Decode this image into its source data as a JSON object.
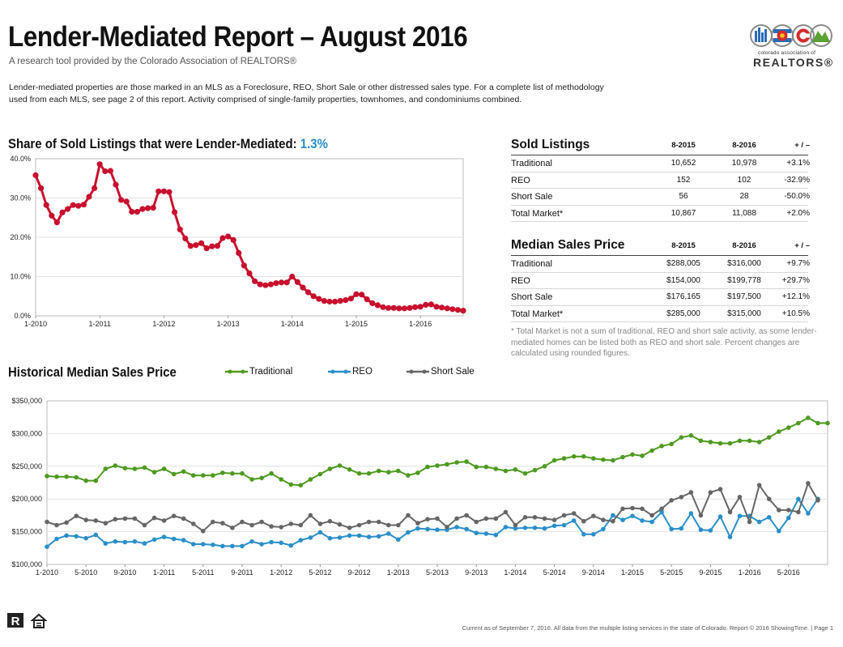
{
  "header": {
    "title": "Lender-Mediated Report – August 2016",
    "subtitle": "A research tool provided by the Colorado Association of REALTORS®",
    "intro": "Lender-mediated properties are those marked in an MLS as a Foreclosure, REO, Short Sale or other distressed sales type. For a complete list of methodology used from each MLS, see page 2 of this report. Activity comprised of single-family properties, townhomes, and condominiums combined."
  },
  "logo": {
    "tagline": "colorado association of",
    "name": "REALTORS®",
    "colors": {
      "blue": "#2a6db5",
      "red": "#d52b2b",
      "yellow": "#f2c21a",
      "green": "#5aa132",
      "gray": "#8a8a8a"
    }
  },
  "share_section": {
    "heading": "Share of Sold Listings that were Lender-Mediated:",
    "value": "1.3%",
    "color": "#c8102e"
  },
  "sold_listings": {
    "title": "Sold Listings",
    "columns": [
      "8-2015",
      "8-2016",
      "+ / –"
    ],
    "rows": [
      {
        "label": "Traditional",
        "v2015": "10,652",
        "v2016": "10,978",
        "change": "+3.1%"
      },
      {
        "label": "REO",
        "v2015": "152",
        "v2016": "102",
        "change": "-32.9%"
      },
      {
        "label": "Short Sale",
        "v2015": "56",
        "v2016": "28",
        "change": "-50.0%"
      },
      {
        "label": "Total Market*",
        "v2015": "10,867",
        "v2016": "11,088",
        "change": "+2.0%"
      }
    ]
  },
  "median_price": {
    "title": "Median Sales Price",
    "columns": [
      "8-2015",
      "8-2016",
      "+ / –"
    ],
    "rows": [
      {
        "label": "Traditional",
        "v2015": "$288,005",
        "v2016": "$316,000",
        "change": "+9.7%"
      },
      {
        "label": "REO",
        "v2015": "$154,000",
        "v2016": "$199,778",
        "change": "+29.7%"
      },
      {
        "label": "Short Sale",
        "v2015": "$176,165",
        "v2016": "$197,500",
        "change": "+12.1%"
      },
      {
        "label": "Total Market*",
        "v2015": "$285,000",
        "v2016": "$315,000",
        "change": "+10.5%"
      }
    ]
  },
  "footnote": "* Total Market is not a sum of traditional, REO and short sale activity, as some lender-mediated homes can be listed both as REO and short sale. Percent changes are calculated using rounded figures.",
  "historical_section": {
    "heading": "Historical Median Sales Price"
  },
  "footer": {
    "text": "Current as of September 7, 2016. All data from the multiple listing services in the state of Colorado. Report © 2016 ShowingTime.  |  Page 1"
  },
  "chart_data": [
    {
      "type": "line",
      "x_start": "2010-01",
      "x_step": "month",
      "xticks": [
        "1-2010",
        "1-2011",
        "1-2012",
        "1-2013",
        "1-2014",
        "1-2015",
        "1-2016"
      ],
      "yticks": [
        "0.0%",
        "10.0%",
        "20.0%",
        "30.0%",
        "40.0%"
      ],
      "ylim": [
        0,
        40
      ],
      "grid": true,
      "series": [
        {
          "color": "#c8102e",
          "values": [
            35.8,
            32.5,
            28.2,
            25.5,
            23.8,
            26.3,
            27.2,
            28.2,
            28.0,
            28.3,
            30.3,
            32.5,
            38.6,
            36.8,
            36.9,
            33.4,
            29.5,
            29.1,
            26.5,
            26.5,
            27.2,
            27.4,
            27.5,
            31.7,
            31.7,
            31.5,
            26.4,
            22.0,
            19.7,
            17.8,
            18.0,
            18.5,
            17.2,
            17.7,
            17.8,
            19.8,
            20.2,
            19.3,
            16.0,
            12.8,
            10.8,
            8.8,
            8.0,
            7.8,
            8.0,
            8.3,
            8.5,
            8.5,
            10.0,
            8.6,
            7.2,
            6.0,
            5.0,
            4.3,
            3.8,
            3.6,
            3.6,
            3.8,
            4.0,
            4.4,
            5.5,
            5.4,
            4.2,
            3.2,
            2.7,
            2.2,
            2.0,
            2.0,
            1.9,
            1.9,
            2.0,
            2.2,
            2.3,
            2.8,
            2.9,
            2.3,
            2.1,
            1.9,
            1.7,
            1.5,
            1.3
          ]
        }
      ]
    },
    {
      "type": "line",
      "x_start": "2010-01",
      "x_step": "month",
      "xticks": [
        "1-2010",
        "5-2010",
        "9-2010",
        "1-2011",
        "5-2011",
        "9-2011",
        "1-2012",
        "5-2012",
        "9-2012",
        "1-2013",
        "5-2013",
        "9-2013",
        "1-2014",
        "5-2014",
        "9-2014",
        "1-2015",
        "5-2015",
        "9-2015",
        "1-2016",
        "5-2016"
      ],
      "yticks": [
        "$100,000",
        "$150,000",
        "$200,000",
        "$250,000",
        "$300,000",
        "$350,000"
      ],
      "ylim": [
        100000,
        350000
      ],
      "grid": true,
      "legend": "top",
      "series": [
        {
          "name": "Traditional",
          "color": "#4e9a1f",
          "values": [
            235000,
            234000,
            234000,
            233000,
            228000,
            228000,
            246000,
            251000,
            247000,
            246000,
            248000,
            241000,
            246000,
            238000,
            242000,
            236000,
            236000,
            236000,
            240000,
            239000,
            239000,
            230000,
            232000,
            239000,
            230000,
            222000,
            221000,
            230000,
            238000,
            246000,
            251000,
            245000,
            239000,
            239000,
            243000,
            241000,
            243000,
            236000,
            240000,
            249000,
            251000,
            253000,
            256000,
            257000,
            249000,
            249000,
            246000,
            243000,
            245000,
            239000,
            244000,
            250000,
            259000,
            262000,
            265000,
            265000,
            262000,
            260000,
            259000,
            264000,
            268000,
            266000,
            274000,
            281000,
            284000,
            294000,
            297000,
            289000,
            287000,
            285000,
            285000,
            289000,
            289000,
            287000,
            294000,
            303000,
            309000,
            316000,
            324000,
            316000,
            316000
          ]
        },
        {
          "name": "REO",
          "color": "#2a8fc9",
          "values": [
            127000,
            139000,
            144000,
            143000,
            140000,
            145000,
            132000,
            135000,
            134000,
            135000,
            132000,
            138000,
            142000,
            139000,
            137000,
            131000,
            131000,
            130000,
            128000,
            128000,
            128000,
            135000,
            131000,
            134000,
            133000,
            129000,
            137000,
            141000,
            149000,
            140000,
            141000,
            144000,
            144000,
            142000,
            143000,
            147000,
            138000,
            149000,
            155000,
            154000,
            153000,
            153000,
            157000,
            154000,
            148000,
            147000,
            145000,
            157000,
            155000,
            156000,
            156000,
            155000,
            159000,
            160000,
            167000,
            146000,
            146000,
            154000,
            175000,
            168000,
            174000,
            167000,
            165000,
            180000,
            154000,
            155000,
            178000,
            153000,
            152000,
            173000,
            142000,
            174000,
            174000,
            165000,
            172000,
            151000,
            171000,
            200000,
            178000,
            200000
          ]
        },
        {
          "name": "Short Sale",
          "color": "#666666",
          "values": [
            165000,
            160000,
            164000,
            174000,
            168000,
            167000,
            163000,
            169000,
            170000,
            170000,
            160000,
            171000,
            167000,
            174000,
            170000,
            162000,
            151000,
            165000,
            163000,
            156000,
            165000,
            160000,
            165000,
            158000,
            157000,
            162000,
            160000,
            175000,
            162000,
            166000,
            161000,
            156000,
            160000,
            165000,
            165000,
            160000,
            160000,
            175000,
            163000,
            169000,
            170000,
            157000,
            170000,
            175000,
            165000,
            170000,
            170000,
            180000,
            160000,
            172000,
            172000,
            170000,
            168000,
            175000,
            178000,
            166000,
            174000,
            168000,
            166000,
            185000,
            186000,
            185000,
            175000,
            185000,
            198000,
            203000,
            210000,
            175000,
            210000,
            215000,
            180000,
            203000,
            165000,
            221000,
            200000,
            183000,
            183000,
            180000,
            224000,
            198000
          ]
        }
      ]
    }
  ]
}
